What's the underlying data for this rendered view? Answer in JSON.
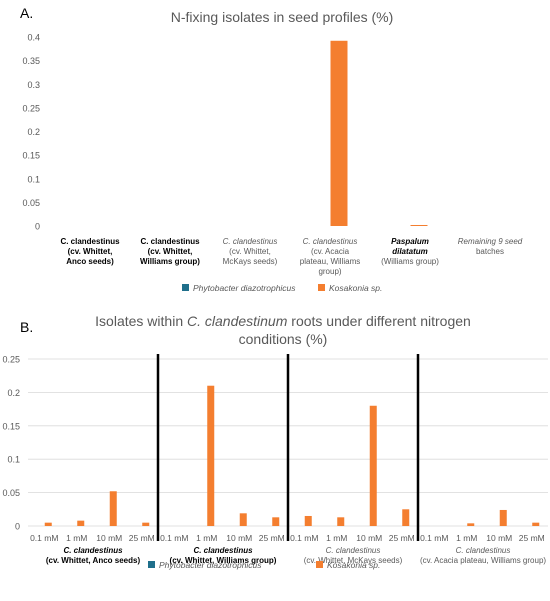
{
  "colors": {
    "phytobacter": "#1f6f8b",
    "kosakonia": "#f47e2f",
    "gridline": "#d9d9d9",
    "divider": "#000000",
    "text": "#595959"
  },
  "chart_data": [
    {
      "panel_label": "A.",
      "type": "bar",
      "title": "N-fixing isolates in seed profiles (%)",
      "ylim": [
        0,
        0.4
      ],
      "yticks": [
        "0",
        "0.05",
        "0.1",
        "0.15",
        "0.2",
        "0.25",
        "0.3",
        "0.35",
        "0.4"
      ],
      "grid": false,
      "legend_position": "bottom",
      "categories": [
        {
          "lines": [
            "C. clandestinus",
            "(cv. Whittet,",
            "Anco seeds)"
          ],
          "bold": true
        },
        {
          "lines": [
            "C. clandestinus",
            "(cv. Whittet,",
            "Williams group)"
          ],
          "bold": true
        },
        {
          "lines": [
            "C. clandestinus",
            "(cv. Whittet,",
            "McKays seeds)"
          ],
          "bold": false
        },
        {
          "lines": [
            "C. clandestinus",
            "(cv. Acacia",
            "plateau, Williams",
            "group)"
          ],
          "bold": false
        },
        {
          "lines": [
            "Paspalum",
            "dilatatum",
            "(Williams group)"
          ],
          "bold": false
        },
        {
          "lines": [
            "Remaining 9 seed",
            "batches"
          ],
          "bold": false
        }
      ],
      "series": [
        {
          "name": "Phytobacter diazotrophicus",
          "values": [
            0,
            0,
            0,
            0,
            0,
            0
          ]
        },
        {
          "name": "Kosakonia sp.",
          "values": [
            0,
            0,
            0,
            0.392,
            0.002,
            0
          ]
        }
      ]
    },
    {
      "panel_label": "B.",
      "type": "bar",
      "title_parts": [
        "Isolates within ",
        "C. clandestinum",
        " roots under different nitrogen"
      ],
      "title_line2": "conditions (%)",
      "ylim": [
        0,
        0.25
      ],
      "yticks": [
        "0",
        "0.05",
        "0.1",
        "0.15",
        "0.2",
        "0.25"
      ],
      "grid": true,
      "legend_position": "bottom",
      "concentrations": [
        "0.1 mM",
        "1 mM",
        "10 mM",
        "25 mM"
      ],
      "groups": [
        {
          "lines": [
            "C. clandestinus",
            "(cv. Whittet, Anco seeds)"
          ],
          "bold": true
        },
        {
          "lines": [
            "C. clandestinus",
            "(cv. Whittet, Williams group)"
          ],
          "bold": true
        },
        {
          "lines": [
            "C. clandestinus",
            "(cv. Whittet, McKays seeds)"
          ],
          "bold": false
        },
        {
          "lines": [
            "C. clandestinus",
            "(cv. Acacia plateau, Williams group)"
          ],
          "bold": false
        }
      ],
      "series": [
        {
          "name": "Phytobacter diazotrophicus",
          "values": [
            0,
            0,
            0,
            0,
            0,
            0,
            0,
            0,
            0,
            0,
            0,
            0,
            0,
            0,
            0,
            0
          ]
        },
        {
          "name": "Kosakonia sp.",
          "values": [
            0.005,
            0.008,
            0.052,
            0.005,
            0,
            0.21,
            0.019,
            0.013,
            0.015,
            0.013,
            0.18,
            0.025,
            0,
            0.004,
            0.024,
            0.005
          ]
        }
      ]
    }
  ]
}
